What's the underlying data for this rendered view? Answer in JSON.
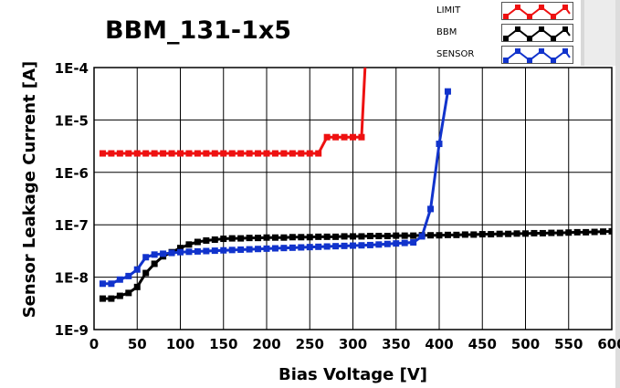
{
  "chart_data": {
    "type": "line",
    "title": "BBM_131-1x5",
    "xlabel": "Bias Voltage [V]",
    "ylabel": "Sensor Leakage Current [A]",
    "xlim": [
      0,
      600
    ],
    "ylim": [
      1e-09,
      0.0001
    ],
    "yscale": "log",
    "grid": true,
    "legend": "top-right",
    "xticks": [
      "0",
      "50",
      "100",
      "150",
      "200",
      "250",
      "300",
      "350",
      "400",
      "450",
      "500",
      "550",
      "600"
    ],
    "yticks": [
      "1E-4",
      "1E-5",
      "1E-6",
      "1E-7",
      "1E-8",
      "1E-9"
    ],
    "series": [
      {
        "name": "LIMIT",
        "color": "#ee1111",
        "x": [
          10,
          20,
          30,
          40,
          50,
          60,
          70,
          80,
          90,
          100,
          110,
          120,
          130,
          140,
          150,
          160,
          170,
          180,
          190,
          200,
          210,
          220,
          230,
          240,
          250,
          260,
          270,
          280,
          290,
          300,
          310,
          315
        ],
        "y": [
          2.3e-06,
          2.3e-06,
          2.3e-06,
          2.3e-06,
          2.3e-06,
          2.3e-06,
          2.3e-06,
          2.3e-06,
          2.3e-06,
          2.3e-06,
          2.3e-06,
          2.3e-06,
          2.3e-06,
          2.3e-06,
          2.3e-06,
          2.3e-06,
          2.3e-06,
          2.3e-06,
          2.3e-06,
          2.3e-06,
          2.3e-06,
          2.3e-06,
          2.3e-06,
          2.3e-06,
          2.3e-06,
          2.3e-06,
          4.7e-06,
          4.7e-06,
          4.7e-06,
          4.7e-06,
          4.7e-06,
          0.0002
        ]
      },
      {
        "name": "BBM",
        "color": "#000000",
        "x": [
          10,
          20,
          30,
          40,
          50,
          60,
          70,
          80,
          90,
          100,
          110,
          120,
          130,
          140,
          150,
          160,
          170,
          180,
          190,
          200,
          210,
          220,
          230,
          240,
          250,
          260,
          270,
          280,
          290,
          300,
          310,
          320,
          330,
          340,
          350,
          360,
          370,
          380,
          390,
          400,
          410,
          420,
          430,
          440,
          450,
          460,
          470,
          480,
          490,
          500,
          510,
          520,
          530,
          540,
          550,
          560,
          570,
          580,
          590,
          600
        ],
        "y": [
          3.9e-09,
          3.9e-09,
          4.4e-09,
          5e-09,
          6.5e-09,
          1.2e-08,
          1.8e-08,
          2.5e-08,
          3e-08,
          3.6e-08,
          4.2e-08,
          4.7e-08,
          5e-08,
          5.2e-08,
          5.4e-08,
          5.5e-08,
          5.5e-08,
          5.6e-08,
          5.6e-08,
          5.7e-08,
          5.7e-08,
          5.7e-08,
          5.8e-08,
          5.8e-08,
          5.8e-08,
          5.9e-08,
          5.9e-08,
          5.9e-08,
          6e-08,
          6e-08,
          6e-08,
          6.1e-08,
          6.1e-08,
          6.1e-08,
          6.2e-08,
          6.2e-08,
          6.2e-08,
          6.3e-08,
          6.3e-08,
          6.3e-08,
          6.4e-08,
          6.4e-08,
          6.5e-08,
          6.5e-08,
          6.6e-08,
          6.6e-08,
          6.7e-08,
          6.7e-08,
          6.8e-08,
          6.8e-08,
          6.9e-08,
          6.9e-08,
          7e-08,
          7e-08,
          7.1e-08,
          7.2e-08,
          7.2e-08,
          7.3e-08,
          7.4e-08,
          7.5e-08
        ]
      },
      {
        "name": "SENSOR",
        "color": "#1133cc",
        "x": [
          10,
          20,
          30,
          40,
          50,
          60,
          70,
          80,
          90,
          100,
          110,
          120,
          130,
          140,
          150,
          160,
          170,
          180,
          190,
          200,
          210,
          220,
          230,
          240,
          250,
          260,
          270,
          280,
          290,
          300,
          310,
          320,
          330,
          340,
          350,
          360,
          370,
          380,
          390,
          400,
          410
        ],
        "y": [
          7.5e-09,
          7.5e-09,
          9e-09,
          1.05e-08,
          1.4e-08,
          2.4e-08,
          2.7e-08,
          2.8e-08,
          2.9e-08,
          3e-08,
          3.05e-08,
          3.1e-08,
          3.15e-08,
          3.2e-08,
          3.25e-08,
          3.3e-08,
          3.35e-08,
          3.4e-08,
          3.45e-08,
          3.5e-08,
          3.55e-08,
          3.6e-08,
          3.65e-08,
          3.7e-08,
          3.75e-08,
          3.8e-08,
          3.85e-08,
          3.9e-08,
          3.95e-08,
          4e-08,
          4.05e-08,
          4.1e-08,
          4.2e-08,
          4.3e-08,
          4.4e-08,
          4.5e-08,
          4.6e-08,
          6e-08,
          2e-07,
          3.5e-06,
          3.5e-05
        ]
      }
    ]
  }
}
